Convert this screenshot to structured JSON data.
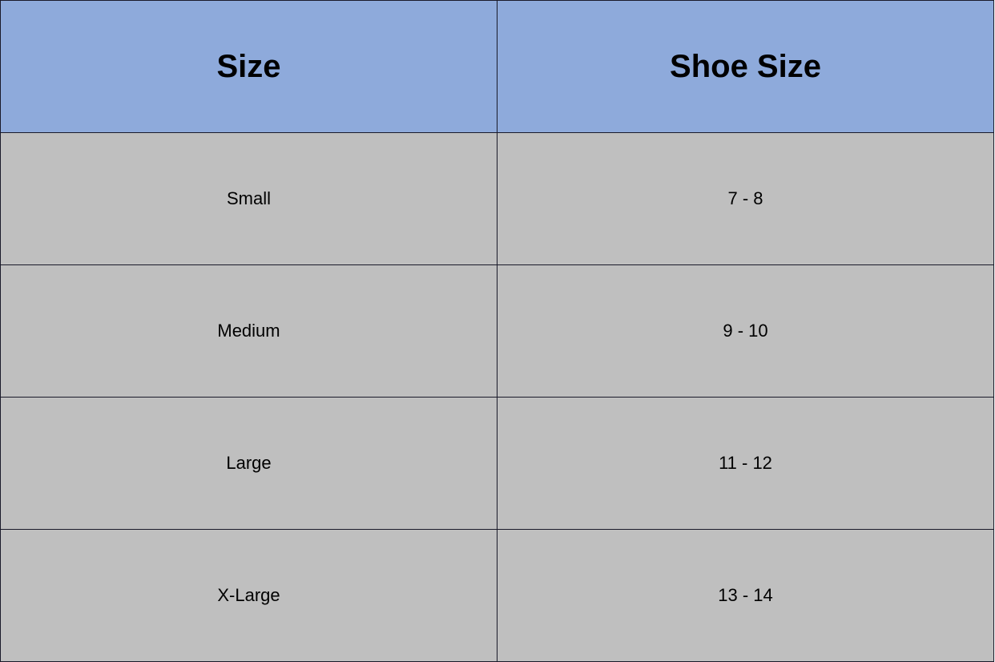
{
  "colors": {
    "header_bg": "#8eaadb",
    "cell_bg": "#bfbfbf"
  },
  "table": {
    "headers": [
      "Size",
      "Shoe Size"
    ],
    "rows": [
      [
        "Small",
        "7 - 8"
      ],
      [
        "Medium",
        "9 - 10"
      ],
      [
        "Large",
        "11 - 12"
      ],
      [
        "X-Large",
        "13 - 14"
      ]
    ]
  }
}
